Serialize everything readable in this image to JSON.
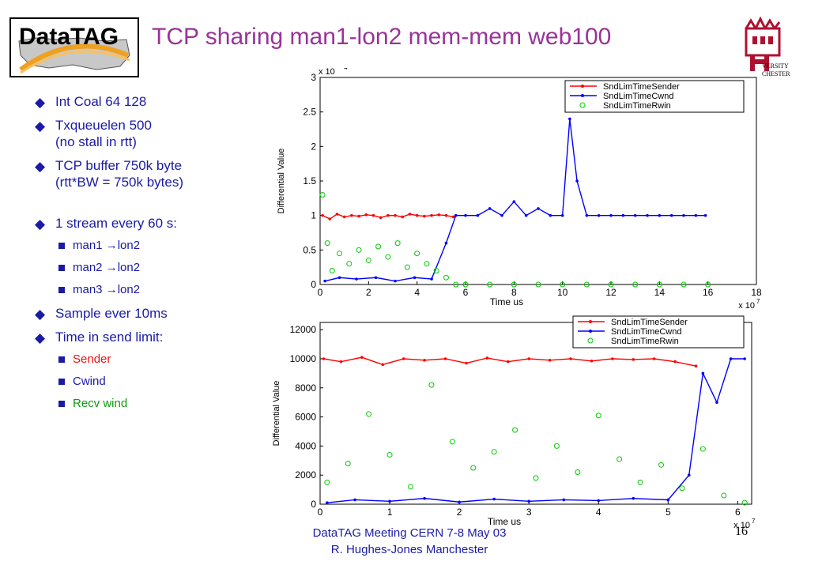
{
  "header": {
    "logo_text": "DataTAG",
    "title": "TCP sharing man1-lon2 mem-mem web100",
    "uni_logo_text": [
      "VERSITY",
      "CHESTER"
    ]
  },
  "bullets": [
    {
      "lines": [
        "Int Coal 64 128"
      ]
    },
    {
      "lines": [
        "Txqueuelen 500",
        "(no stall in rtt)"
      ]
    },
    {
      "lines": [
        "TCP buffer 750k byte",
        "(rtt*BW = 750k bytes)"
      ]
    },
    {
      "lines": [
        "1 stream every 60 s:"
      ],
      "gap_before": true,
      "subitems": [
        {
          "text": "man1 →lon2",
          "color": "#1a1aa6"
        },
        {
          "text": "man2 →lon2",
          "color": "#1a1aa6"
        },
        {
          "text": "man3 →lon2",
          "color": "#1a1aa6"
        }
      ]
    },
    {
      "lines": [
        "Sample ever 10ms"
      ]
    },
    {
      "lines": [
        "Time in send limit:"
      ],
      "subitems": [
        {
          "text": "Sender",
          "color": "#ee1111"
        },
        {
          "text": "Cwind",
          "color": "#1a1aa6"
        },
        {
          "text": "Recv wind",
          "color": "#119911"
        }
      ]
    }
  ],
  "footer": {
    "line1": "DataTAG Meeting CERN 7-8 May 03",
    "line2": "R. Hughes-Jones  Manchester",
    "page": "16"
  },
  "chart_data": [
    {
      "type": "line",
      "xlabel": "Time us",
      "ylabel": "Differential Value",
      "x_exponent": "x 10",
      "x_exp_power": "7",
      "y_exponent": "x 10",
      "y_exp_power": "4",
      "xlim": [
        0,
        18
      ],
      "ylim": [
        0,
        3
      ],
      "xticks": [
        "0",
        "2",
        "4",
        "6",
        "8",
        "10",
        "12",
        "14",
        "16",
        "18"
      ],
      "yticks": [
        "0",
        "0.5",
        "1",
        "1.5",
        "2",
        "2.5",
        "3"
      ],
      "legend_position": "top-right",
      "legend": [
        "SndLimTimeSender",
        "SndLimTimeCwnd",
        "SndLimTimeRwin"
      ],
      "colors": {
        "sender": "#ff0000",
        "cwnd": "#0000ff",
        "rwin": "#00cc00"
      },
      "series": [
        {
          "name": "SndLimTimeSender",
          "style": "line-dot",
          "x": [
            0.1,
            0.4,
            0.7,
            1.0,
            1.3,
            1.6,
            1.9,
            2.2,
            2.5,
            2.8,
            3.1,
            3.4,
            3.7,
            4.0,
            4.3,
            4.6,
            4.9,
            5.2,
            5.5
          ],
          "y": [
            1.0,
            0.95,
            1.02,
            0.98,
            1.0,
            0.99,
            1.01,
            1.0,
            0.97,
            1.0,
            1.0,
            0.98,
            1.02,
            1.0,
            0.99,
            1.0,
            1.01,
            1.0,
            0.98
          ]
        },
        {
          "name": "SndLimTimeCwnd",
          "style": "line-dot",
          "x": [
            0.2,
            0.8,
            1.5,
            2.3,
            3.1,
            3.9,
            4.6,
            5.2,
            5.6,
            6.0,
            6.5,
            7.0,
            7.5,
            8.0,
            8.5,
            9.0,
            9.5,
            10.0,
            10.3,
            10.6,
            11.0,
            11.5,
            12.0,
            12.5,
            13.0,
            13.5,
            14.0,
            14.5,
            15.0,
            15.5,
            15.9
          ],
          "y": [
            0.05,
            0.1,
            0.08,
            0.1,
            0.05,
            0.1,
            0.08,
            0.6,
            1.0,
            1.0,
            1.0,
            1.1,
            1.0,
            1.2,
            1.0,
            1.1,
            1.0,
            1.0,
            2.4,
            1.5,
            1.0,
            1.0,
            1.0,
            1.0,
            1.0,
            1.0,
            1.0,
            1.0,
            1.0,
            1.0,
            1.0
          ]
        },
        {
          "name": "SndLimTimeRwin",
          "style": "circle",
          "x": [
            0.1,
            0.3,
            0.5,
            0.8,
            1.2,
            1.6,
            2.0,
            2.4,
            2.8,
            3.2,
            3.6,
            4.0,
            4.4,
            4.8,
            5.2,
            5.6,
            6.0,
            7.0,
            8.0,
            9.0,
            10.0,
            11.0,
            12.0,
            13.0,
            14.0,
            15.0,
            16.0
          ],
          "y": [
            1.3,
            0.6,
            0.2,
            0.45,
            0.3,
            0.5,
            0.35,
            0.55,
            0.4,
            0.6,
            0.25,
            0.45,
            0.3,
            0.2,
            0.1,
            0.0,
            0.0,
            0.0,
            0.0,
            0.0,
            0.0,
            0.0,
            0.0,
            0.0,
            0.0,
            0.0,
            0.0
          ]
        }
      ]
    },
    {
      "type": "line",
      "xlabel": "Time us",
      "ylabel": "Differential Value",
      "x_exponent": "x 10",
      "x_exp_power": "7",
      "xlim": [
        0,
        6.2
      ],
      "ylim": [
        0,
        12500
      ],
      "xticks": [
        "0",
        "1",
        "2",
        "3",
        "4",
        "5",
        "6"
      ],
      "yticks": [
        "0",
        "2000",
        "4000",
        "6000",
        "8000",
        "10000",
        "12000"
      ],
      "legend_position": "top-right",
      "legend": [
        "SndLimTimeSender",
        "SndLimTimeCwnd",
        "SndLimTimeRwin"
      ],
      "colors": {
        "sender": "#ff0000",
        "cwnd": "#0000ff",
        "rwin": "#00cc00"
      },
      "series": [
        {
          "name": "SndLimTimeSender",
          "style": "line-dot",
          "x": [
            0.05,
            0.3,
            0.6,
            0.9,
            1.2,
            1.5,
            1.8,
            2.1,
            2.4,
            2.7,
            3.0,
            3.3,
            3.6,
            3.9,
            4.2,
            4.5,
            4.8,
            5.1,
            5.4
          ],
          "y": [
            10000,
            9800,
            10100,
            9600,
            10000,
            9900,
            10000,
            9700,
            10050,
            9800,
            10000,
            9900,
            10000,
            9850,
            10000,
            9950,
            10000,
            9800,
            9500
          ]
        },
        {
          "name": "SndLimTimeCwnd",
          "style": "line-dot",
          "x": [
            0.1,
            0.5,
            1.0,
            1.5,
            2.0,
            2.5,
            3.0,
            3.5,
            4.0,
            4.5,
            5.0,
            5.3,
            5.5,
            5.7,
            5.9,
            6.1
          ],
          "y": [
            100,
            300,
            200,
            400,
            150,
            350,
            200,
            300,
            250,
            400,
            300,
            2000,
            9000,
            7000,
            10000,
            10000
          ]
        },
        {
          "name": "SndLimTimeRwin",
          "style": "circle",
          "x": [
            0.1,
            0.4,
            0.7,
            1.0,
            1.3,
            1.6,
            1.9,
            2.2,
            2.5,
            2.8,
            3.1,
            3.4,
            3.7,
            4.0,
            4.3,
            4.6,
            4.9,
            5.2,
            5.5,
            5.8,
            6.1
          ],
          "y": [
            1500,
            2800,
            6200,
            3400,
            1200,
            8200,
            4300,
            2500,
            3600,
            5100,
            1800,
            4000,
            2200,
            6100,
            3100,
            1500,
            2700,
            1100,
            3800,
            600,
            100
          ]
        }
      ]
    }
  ]
}
